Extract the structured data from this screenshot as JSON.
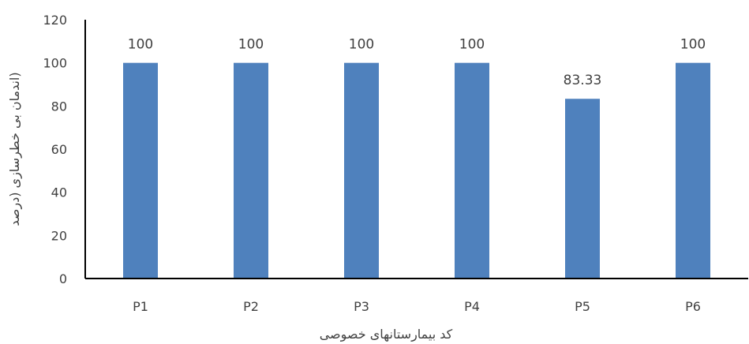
{
  "chart_data": {
    "type": "bar",
    "categories": [
      "P1",
      "P2",
      "P3",
      "P4",
      "P5",
      "P6"
    ],
    "values": [
      100,
      100,
      100,
      100,
      83.33,
      100
    ],
    "data_labels": [
      "100",
      "100",
      "100",
      "100",
      "83.33",
      "100"
    ],
    "title": "",
    "xlabel": "کد بیمارستانهای خصوصی",
    "ylabel": "(اندمان بی خطرسازی (درصد",
    "ylim": [
      0,
      120
    ],
    "yticks": [
      0,
      20,
      40,
      60,
      80,
      100,
      120
    ],
    "grid": false,
    "legend": "none",
    "bar_color": "#4F81BD",
    "axis_color": "#000000",
    "text_color": "#404040"
  }
}
